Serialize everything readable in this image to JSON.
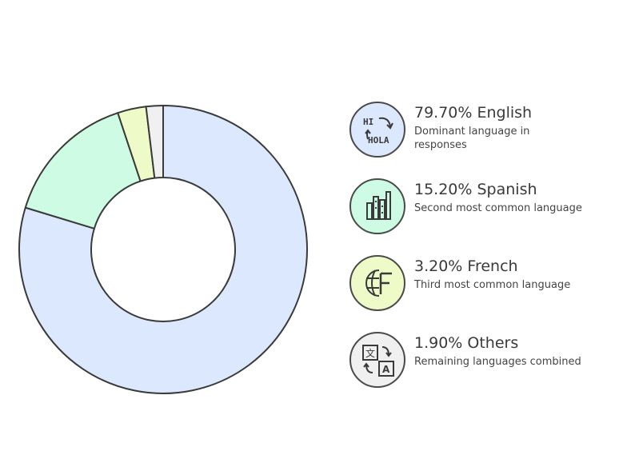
{
  "chart_data": {
    "type": "pie",
    "variant": "donut",
    "title": "",
    "categories": [
      "English",
      "Spanish",
      "French",
      "Others"
    ],
    "values": [
      79.7,
      15.2,
      3.2,
      1.9
    ],
    "colors": [
      "#dce8fd",
      "#cdfbe3",
      "#eefbc9",
      "#f0f0f0"
    ],
    "legend_placement": "right"
  },
  "legend": [
    {
      "title": "79.70% English",
      "description": "Dominant language in responses",
      "icon": "translate-hi-hola-icon",
      "color": "#dce8fd"
    },
    {
      "title": "15.20% Spanish",
      "description": "Second most common language",
      "icon": "bars-chart-icon",
      "color": "#cdfbe3"
    },
    {
      "title": "3.20% French",
      "description": "Third most common language",
      "icon": "globe-f-icon",
      "color": "#eefbc9"
    },
    {
      "title": "1.90% Others",
      "description": "Remaining languages combined",
      "icon": "translate-a-icon",
      "color": "#f0f0f0"
    }
  ],
  "icon_text": {
    "hi": "HI",
    "hola": "HOLA"
  }
}
